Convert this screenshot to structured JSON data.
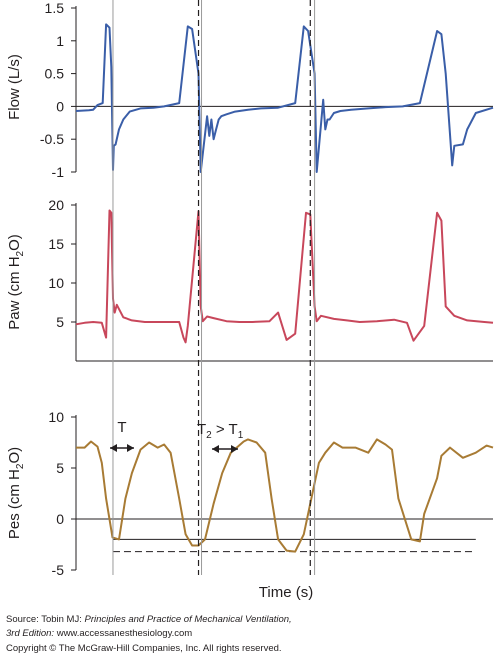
{
  "chart_data": [
    {
      "type": "line",
      "ylabel": "Flow (L/s)",
      "yticks": [
        -1,
        -0.5,
        0,
        0.5,
        1,
        1.5
      ],
      "ylim": [
        -1,
        1.5
      ],
      "color": "#3a5ea8",
      "x": [
        0.0,
        0.3,
        0.4,
        0.5,
        0.62,
        0.7,
        0.78,
        0.82,
        0.86,
        0.88,
        0.92,
        1.0,
        1.1,
        1.25,
        1.5,
        1.8,
        2.05,
        2.4,
        2.6,
        2.7,
        2.85,
        2.9,
        3.05,
        3.1,
        3.15,
        3.2,
        3.26,
        3.32,
        3.38,
        3.5,
        3.7,
        4.0,
        4.3,
        4.7,
        5.1,
        5.3,
        5.4,
        5.55,
        5.6,
        5.75,
        5.8,
        5.85,
        5.9,
        6.0,
        6.15,
        6.4,
        6.8,
        7.2,
        7.6,
        8.0,
        8.4,
        8.5,
        8.6,
        8.75,
        8.8,
        9.0,
        9.1,
        9.3,
        9.7
      ],
      "values": [
        -0.07,
        -0.06,
        -0.05,
        0.02,
        0.05,
        1.25,
        1.2,
        0.6,
        -0.97,
        -0.6,
        -0.58,
        -0.35,
        -0.2,
        -0.08,
        -0.03,
        -0.02,
        0.0,
        0.05,
        1.22,
        1.18,
        0.5,
        -1.0,
        -0.15,
        -0.45,
        -0.2,
        -0.5,
        -0.35,
        -0.2,
        -0.15,
        -0.12,
        -0.08,
        -0.05,
        -0.03,
        -0.02,
        0.05,
        1.22,
        1.15,
        0.5,
        -1.0,
        0.1,
        -0.35,
        -0.2,
        -0.2,
        -0.1,
        -0.07,
        -0.05,
        -0.03,
        -0.01,
        0.0,
        0.05,
        1.15,
        1.1,
        0.5,
        -0.9,
        -0.6,
        -0.58,
        -0.35,
        -0.1,
        -0.02
      ]
    },
    {
      "type": "line",
      "ylabel": "Paw (cm H2O)",
      "yticks": [
        5,
        10,
        15,
        20
      ],
      "ylim": [
        0,
        20
      ],
      "color": "#c8475b",
      "x": [
        0.0,
        0.2,
        0.4,
        0.6,
        0.7,
        0.78,
        0.82,
        0.86,
        0.9,
        0.95,
        1.1,
        1.3,
        1.6,
        2.0,
        2.4,
        2.5,
        2.55,
        2.6,
        2.85,
        2.9,
        2.95,
        3.05,
        3.2,
        3.5,
        3.8,
        4.1,
        4.5,
        4.7,
        4.9,
        5.1,
        5.35,
        5.45,
        5.55,
        5.6,
        5.7,
        6.0,
        6.3,
        6.6,
        7.0,
        7.4,
        7.7,
        7.85,
        8.1,
        8.4,
        8.5,
        8.6,
        8.8,
        9.1,
        9.5,
        9.7
      ],
      "values": [
        4.7,
        4.9,
        5.0,
        4.9,
        3.0,
        19.3,
        19.0,
        8.0,
        6.2,
        7.2,
        5.6,
        5.2,
        5.0,
        5.0,
        5.0,
        3.0,
        2.4,
        4.5,
        19.2,
        7.0,
        5.1,
        5.7,
        5.5,
        5.1,
        5.0,
        5.0,
        5.1,
        6.2,
        2.7,
        3.5,
        19.0,
        18.8,
        7.0,
        5.1,
        5.8,
        5.4,
        5.2,
        5.0,
        5.1,
        5.3,
        4.9,
        2.6,
        4.5,
        19.0,
        18.0,
        7.0,
        5.8,
        5.2,
        5.0,
        4.9
      ]
    },
    {
      "type": "line",
      "ylabel": "Pes (cm H2O)",
      "xlabel": "Time (s)",
      "yticks": [
        -5,
        0,
        5,
        10
      ],
      "ylim": [
        -5,
        10
      ],
      "color": "#a87b34",
      "x": [
        0.0,
        0.2,
        0.35,
        0.5,
        0.6,
        0.7,
        0.85,
        1.0,
        1.15,
        1.3,
        1.5,
        1.7,
        1.9,
        2.05,
        2.2,
        2.4,
        2.55,
        2.7,
        2.85,
        3.0,
        3.2,
        3.4,
        3.6,
        3.9,
        4.0,
        4.2,
        4.4,
        4.55,
        4.7,
        4.9,
        5.1,
        5.3,
        5.5,
        5.65,
        5.8,
        6.0,
        6.2,
        6.5,
        6.8,
        7.0,
        7.2,
        7.35,
        7.5,
        7.8,
        8.0,
        8.1,
        8.4,
        8.5,
        8.7,
        9.0,
        9.3,
        9.55,
        9.7
      ],
      "values": [
        7.0,
        7.0,
        7.6,
        7.1,
        5.5,
        2.0,
        -1.8,
        -2.0,
        2.0,
        4.5,
        6.8,
        7.5,
        7.0,
        7.3,
        6.5,
        2.0,
        -1.5,
        -2.6,
        -2.6,
        -2.0,
        1.5,
        4.5,
        6.5,
        7.6,
        7.8,
        7.5,
        6.5,
        2.0,
        -2.0,
        -3.1,
        -3.2,
        -1.5,
        2.5,
        5.5,
        6.5,
        7.5,
        7.0,
        7.0,
        6.5,
        7.8,
        7.3,
        6.8,
        2.0,
        -2.0,
        -2.2,
        0.5,
        4.0,
        6.2,
        7.0,
        6.0,
        6.5,
        7.2,
        7.0
      ],
      "reference_lines": [
        {
          "style": "solid",
          "value": -2
        },
        {
          "style": "dashed",
          "value": -3.2
        }
      ],
      "annotations": [
        {
          "text": "T",
          "type": "double-arrow"
        },
        {
          "text": "T2 > T1",
          "type": "double-arrow"
        }
      ]
    }
  ],
  "vertical_markers": [
    {
      "style": "solid",
      "x": 0.86
    },
    {
      "style": "solid",
      "x": 2.92
    },
    {
      "style": "dashed",
      "x": 2.85
    },
    {
      "style": "solid",
      "x": 5.55
    },
    {
      "style": "dashed",
      "x": 5.45
    }
  ],
  "panels_text": {
    "flow_ylabel": "Flow (L/s)",
    "paw_ylabel": "Paw (cm H",
    "paw_ylabel_sub": "2",
    "paw_ylabel_end": "O)",
    "pes_ylabel": "Pes (cm H",
    "pes_ylabel_sub": "2",
    "pes_ylabel_end": "O)",
    "xlabel": "Time (s)",
    "anno_T": "T",
    "anno_T2": "T",
    "anno_T2_sub": "2",
    "anno_gt": " > T",
    "anno_T1_sub": "1"
  },
  "source": {
    "prefix": "Source: Tobin MJ: ",
    "book": "Principles and Practice of Mechanical Ventilation,",
    "line2": "3rd Edition:",
    "url": " www.accessanesthesiology.com",
    "copyright": "Copyright © The McGraw-Hill Companies, Inc. All rights reserved."
  }
}
